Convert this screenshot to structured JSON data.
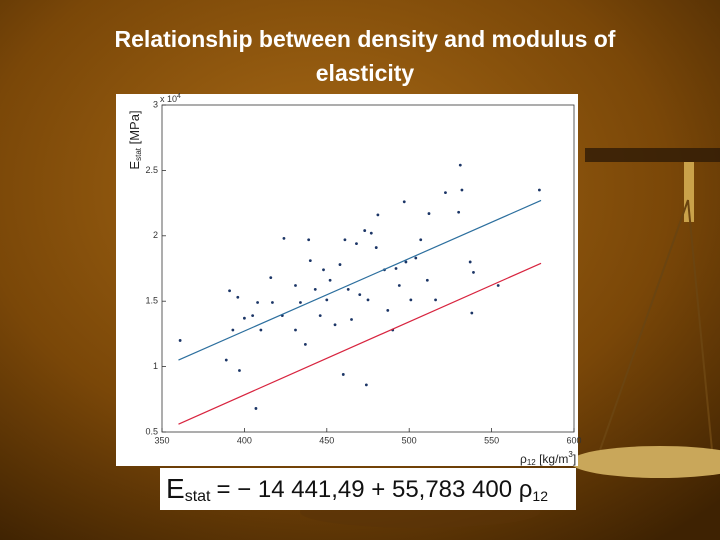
{
  "title": "Relationship between density and modulus of elasticity",
  "chart_data": {
    "type": "scatter",
    "y_label": {
      "main": "E",
      "sub": "stat",
      "unit": " [MPa]"
    },
    "x_label": {
      "main": "ρ",
      "sub": "12",
      "unit": " [kg/m",
      "sup": "3",
      "end": "]"
    },
    "y_multiplier": {
      "base": "x 10",
      "exp": "4"
    },
    "xlim": [
      350,
      600
    ],
    "xticks": [
      350,
      400,
      450,
      500,
      550,
      600
    ],
    "ylim": [
      0.5,
      3
    ],
    "yticks": [
      0.5,
      1,
      1.5,
      2,
      2.5,
      3
    ],
    "series": [
      {
        "mode": "markers",
        "color": "#1b3566",
        "x": [
          361,
          391,
          396,
          393,
          400,
          405,
          408,
          410,
          407,
          416,
          417,
          424,
          423,
          431,
          434,
          431,
          439,
          440,
          437,
          443,
          446,
          448,
          450,
          452,
          455,
          458,
          461,
          463,
          465,
          468,
          470,
          473,
          475,
          477,
          480,
          474,
          460,
          481,
          485,
          487,
          490,
          492,
          494,
          497,
          498,
          501,
          504,
          507,
          511,
          512,
          516,
          522,
          530,
          531,
          532,
          537,
          539,
          538,
          554,
          579,
          397,
          389
        ],
        "values": [
          1.2,
          1.58,
          1.53,
          1.28,
          1.37,
          1.39,
          1.49,
          1.28,
          0.68,
          1.68,
          1.49,
          1.98,
          1.39,
          1.62,
          1.49,
          1.28,
          1.97,
          1.81,
          1.17,
          1.59,
          1.39,
          1.74,
          1.51,
          1.66,
          1.32,
          1.78,
          1.97,
          1.59,
          1.36,
          1.94,
          1.55,
          2.04,
          1.51,
          2.02,
          1.91,
          0.86,
          0.94,
          2.16,
          1.74,
          1.43,
          1.28,
          1.75,
          1.62,
          2.26,
          1.8,
          1.51,
          1.83,
          1.97,
          1.66,
          2.17,
          1.51,
          2.33,
          2.18,
          2.54,
          2.35,
          1.8,
          1.72,
          1.41,
          1.62,
          2.35,
          0.97,
          1.05
        ]
      },
      {
        "mode": "lines",
        "color": "#2c6f9e",
        "x": [
          360,
          580
        ],
        "values": [
          1.05,
          2.27
        ]
      },
      {
        "mode": "lines",
        "color": "#d8243f",
        "x": [
          360,
          580
        ],
        "values": [
          0.56,
          1.79
        ]
      }
    ],
    "equation": {
      "lhs": "E",
      "lhs_sub": "stat",
      "rhs": "= − 14 441,49 + 55,783 400 ρ",
      "rhs_sub": "12"
    }
  }
}
